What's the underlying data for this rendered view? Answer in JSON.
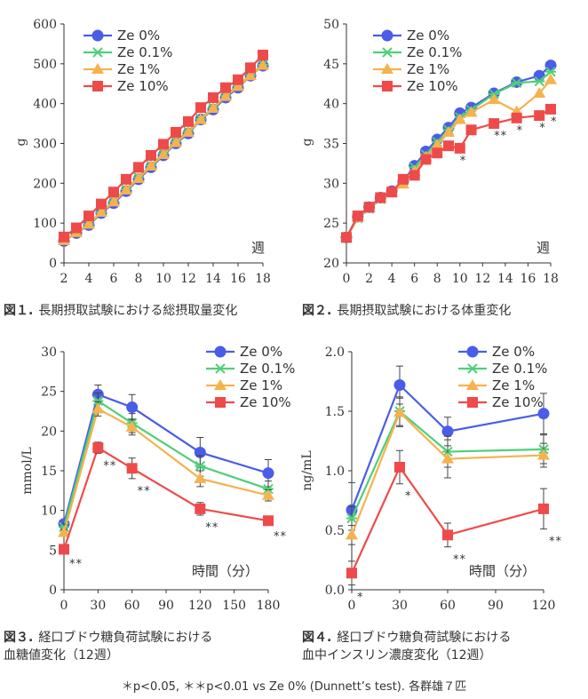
{
  "colors": {
    "ze0": "#4a5de8",
    "ze01": "#4fcf7a",
    "ze1": "#f5b24e",
    "ze10": "#ef4a4a"
  },
  "footnote": "＊p<0.05, ＊＊p<0.01 vs Ze 0% (Dunnett’s test). 各群雄７匹",
  "captions": {
    "fig1": {
      "num": "図１.",
      "text": "長期摂取試験における総摂取量変化"
    },
    "fig2": {
      "num": "図２.",
      "text": "長期摂取試験における体重変化"
    },
    "fig3": {
      "num": "図３.",
      "text": "経口ブドウ糖負荷試験における",
      "text2": "血糖値変化（12週）"
    },
    "fig4": {
      "num": "図４.",
      "text": "経口ブドウ糖負荷試験における",
      "text2": "血中インスリン濃度変化（12週）"
    }
  },
  "chart_data": [
    {
      "type": "line",
      "title": "",
      "xlabel": "週",
      "ylabel": "g",
      "xlim": [
        2,
        18
      ],
      "ylim": [
        0,
        600
      ],
      "xticks": [
        2,
        4,
        6,
        8,
        10,
        12,
        14,
        16,
        18
      ],
      "yticks": [
        0,
        100,
        200,
        300,
        400,
        500,
        600
      ],
      "legend": [
        "Ze 0%",
        "Ze 0.1%",
        "Ze 1%",
        "Ze 10%"
      ],
      "x": [
        2,
        3,
        4,
        5,
        6,
        7,
        8,
        9,
        10,
        11,
        12,
        13,
        14,
        15,
        16,
        17,
        18
      ],
      "series": [
        {
          "name": "Ze 0%",
          "values": [
            55,
            75,
            95,
            125,
            150,
            180,
            210,
            240,
            270,
            300,
            325,
            360,
            385,
            415,
            440,
            470,
            495
          ]
        },
        {
          "name": "Ze 0.1%",
          "values": [
            57,
            77,
            98,
            128,
            155,
            185,
            215,
            245,
            275,
            305,
            330,
            362,
            390,
            420,
            445,
            472,
            498
          ]
        },
        {
          "name": "Ze 1%",
          "values": [
            56,
            76,
            97,
            127,
            153,
            183,
            212,
            243,
            272,
            302,
            328,
            360,
            388,
            418,
            443,
            470,
            496
          ]
        },
        {
          "name": "Ze 10%",
          "values": [
            65,
            88,
            118,
            148,
            178,
            210,
            240,
            270,
            298,
            328,
            355,
            390,
            415,
            440,
            460,
            490,
            522
          ]
        }
      ],
      "annotations": []
    },
    {
      "type": "line",
      "title": "",
      "xlabel": "週",
      "ylabel": "g",
      "xlim": [
        0,
        18
      ],
      "ylim": [
        20,
        50
      ],
      "xticks": [
        0,
        2,
        4,
        6,
        8,
        10,
        12,
        14,
        16,
        18
      ],
      "yticks": [
        20,
        25,
        30,
        35,
        40,
        45,
        50
      ],
      "legend": [
        "Ze 0%",
        "Ze 0.1%",
        "Ze 1%",
        "Ze 10%"
      ],
      "x": [
        0,
        1,
        2,
        3,
        4,
        5,
        6,
        7,
        8,
        9,
        10,
        11,
        13,
        15,
        17,
        18
      ],
      "series": [
        {
          "name": "Ze 0%",
          "values": [
            23.2,
            25.8,
            27,
            28.2,
            29,
            30.2,
            32.2,
            34,
            35.5,
            37,
            38.8,
            39.5,
            41.3,
            42.7,
            43.5,
            44.8
          ]
        },
        {
          "name": "Ze 0.1%",
          "values": [
            23.1,
            25.6,
            26.8,
            28,
            28.9,
            30,
            32,
            33.6,
            35.2,
            36.7,
            38.3,
            39.2,
            41.2,
            42.6,
            42.8,
            44
          ]
        },
        {
          "name": "Ze 1%",
          "values": [
            23.2,
            25.7,
            26.9,
            28.1,
            28.8,
            29.9,
            31.5,
            33.3,
            34.8,
            36.4,
            38,
            38.9,
            40.5,
            39,
            41.3,
            43
          ]
        },
        {
          "name": "Ze 10%",
          "values": [
            23.2,
            25.9,
            27,
            28.2,
            28.9,
            30.5,
            31,
            33,
            33.8,
            34.7,
            34.4,
            36.7,
            37.5,
            38.2,
            38.5,
            39.3
          ]
        }
      ],
      "annotations": [
        {
          "x": 10,
          "label": "*"
        },
        {
          "x": 13,
          "label": "**"
        },
        {
          "x": 15,
          "label": "*"
        },
        {
          "x": 17,
          "label": "*"
        },
        {
          "x": 18,
          "label": "*"
        }
      ]
    },
    {
      "type": "line",
      "title": "",
      "xlabel": "時間（分）",
      "ylabel": "mmol/L",
      "xlim": [
        0,
        180
      ],
      "ylim": [
        0,
        30
      ],
      "xticks": [
        0,
        30,
        60,
        90,
        120,
        150,
        180
      ],
      "yticks": [
        0,
        5,
        10,
        15,
        20,
        25,
        30
      ],
      "legend": [
        "Ze 0%",
        "Ze 0.1%",
        "Ze 1%",
        "Ze 10%"
      ],
      "x": [
        0,
        30,
        60,
        120,
        180
      ],
      "series": [
        {
          "name": "Ze 0%",
          "values": [
            8.3,
            24.6,
            23.0,
            17.3,
            14.7
          ],
          "errors": [
            0.4,
            1.2,
            1.6,
            1.9,
            1.7
          ]
        },
        {
          "name": "Ze 0.1%",
          "values": [
            7.9,
            23.8,
            21.0,
            15.6,
            12.7
          ],
          "errors": [
            0.4,
            1.0,
            1.2,
            1.3,
            1.0
          ]
        },
        {
          "name": "Ze 1%",
          "values": [
            7.2,
            22.8,
            20.5,
            14.0,
            11.9
          ],
          "errors": [
            0.4,
            0.9,
            1.0,
            1.0,
            0.7
          ]
        },
        {
          "name": "Ze 10%",
          "values": [
            5.1,
            17.9,
            15.3,
            10.2,
            8.7
          ],
          "errors": [
            0.3,
            0.7,
            1.3,
            0.8,
            0.4
          ]
        }
      ],
      "annotations": [
        {
          "x": 0,
          "label": "**"
        },
        {
          "x": 30,
          "label": "**"
        },
        {
          "x": 60,
          "label": "**"
        },
        {
          "x": 120,
          "label": "**"
        },
        {
          "x": 180,
          "label": "**"
        }
      ]
    },
    {
      "type": "line",
      "title": "",
      "xlabel": "時間（分）",
      "ylabel": "ng/mL",
      "xlim": [
        0,
        120
      ],
      "ylim": [
        0,
        2
      ],
      "xticks": [
        0,
        30,
        60,
        90,
        120
      ],
      "yticks": [
        0.0,
        0.5,
        1.0,
        1.5,
        2.0
      ],
      "legend": [
        "Ze 0%",
        "Ze 0.1%",
        "Ze 1%",
        "Ze 10%"
      ],
      "x": [
        0,
        30,
        60,
        120
      ],
      "series": [
        {
          "name": "Ze 0%",
          "values": [
            0.67,
            1.72,
            1.33,
            1.48
          ],
          "errors": [
            0.23,
            0.16,
            0.12,
            0.17
          ]
        },
        {
          "name": "Ze 0.1%",
          "values": [
            0.6,
            1.5,
            1.16,
            1.18
          ],
          "errors": [
            0.1,
            0.12,
            0.13,
            0.12
          ]
        },
        {
          "name": "Ze 1%",
          "values": [
            0.46,
            1.49,
            1.1,
            1.13
          ],
          "errors": [
            0.08,
            0.12,
            0.16,
            0.1
          ]
        },
        {
          "name": "Ze 10%",
          "values": [
            0.14,
            1.03,
            0.46,
            0.68
          ],
          "errors": [
            0.1,
            0.14,
            0.1,
            0.17
          ]
        }
      ],
      "annotations": [
        {
          "x": 0,
          "label": "*"
        },
        {
          "x": 30,
          "label": "*"
        },
        {
          "x": 60,
          "label": "**"
        },
        {
          "x": 120,
          "label": "**"
        }
      ]
    }
  ]
}
